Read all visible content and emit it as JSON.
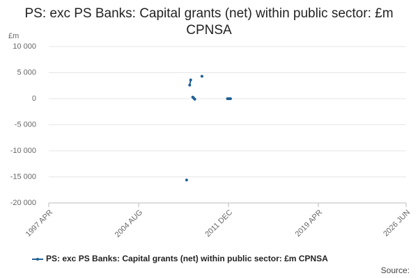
{
  "chart_data": {
    "type": "line",
    "title": "PS: exc PS Banks: Capital grants (net) within public sector: £m CPNSA",
    "y_axis_label": "£m",
    "source": "Source:",
    "x": [
      "2008 JUL",
      "2008 AUG",
      "2008 OCT",
      "2008 NOV",
      "2008 DEC",
      "2009 JAN",
      "2009 FEB",
      "2009 MAR",
      "2009 APR",
      "2009 OCT",
      "2009 NOV",
      "2011 NOV",
      "2011 DEC",
      "2012 JAN",
      "2012 FEB"
    ],
    "series": [
      {
        "name": "PS: exc PS Banks: Capital grants (net) within public sector: £m CPNSA",
        "color": "#206095",
        "values": [
          -15600,
          null,
          2600,
          3600,
          null,
          300,
          100,
          -100,
          null,
          4300,
          null,
          0,
          0,
          0,
          0
        ]
      }
    ],
    "xlim": [
      "1997 APR",
      "2026 JUN"
    ],
    "xticks": [
      "1997 APR",
      "2004 AUG",
      "2011 DEC",
      "2019 APR",
      "2026 JUN"
    ],
    "ylim": [
      -20000,
      10000
    ],
    "yticks": [
      {
        "value": -20000,
        "label": "-20 000"
      },
      {
        "value": -15000,
        "label": "-15 000"
      },
      {
        "value": -10000,
        "label": "-10 000"
      },
      {
        "value": -5000,
        "label": "-5 000"
      },
      0,
      {
        "value": 5000,
        "label": "5 000"
      },
      {
        "value": 10000,
        "label": "10 000"
      }
    ],
    "grid": true
  }
}
